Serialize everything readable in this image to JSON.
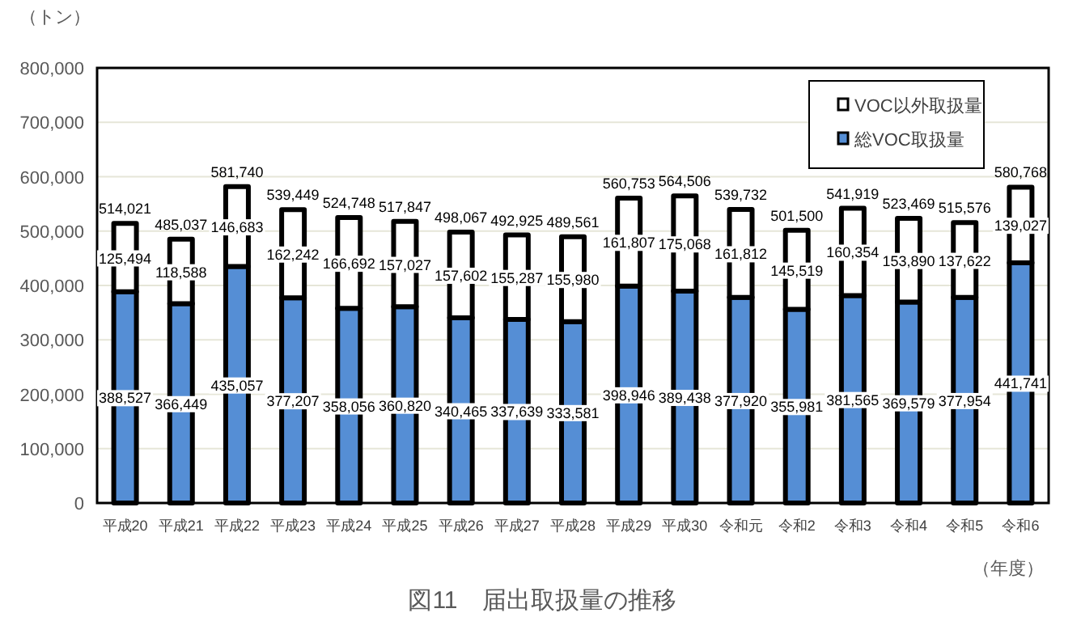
{
  "chart_data": {
    "type": "bar",
    "stacked": true,
    "title": "図11　届出取扱量の推移",
    "ylabel": "（トン）",
    "xlabel": "（年度）",
    "categories": [
      "平成20",
      "平成21",
      "平成22",
      "平成23",
      "平成24",
      "平成25",
      "平成26",
      "平成27",
      "平成28",
      "平成29",
      "平成30",
      "令和元",
      "令和2",
      "令和3",
      "令和4",
      "令和5",
      "令和6"
    ],
    "series": [
      {
        "name": "総VOC取扱量",
        "color": "#558ed5",
        "values": [
          388527,
          366449,
          435057,
          377207,
          358056,
          360820,
          340465,
          337639,
          333581,
          398946,
          389438,
          377920,
          355981,
          381565,
          369579,
          377954,
          441741
        ],
        "value_labels": [
          "388,527",
          "366,449",
          "435,057",
          "377,207",
          "358,056",
          "360,820",
          "340,465",
          "337,639",
          "333,581",
          "398,946",
          "389,438",
          "377,920",
          "355,981",
          "381,565",
          "369,579",
          "377,954",
          "441,741"
        ]
      },
      {
        "name": "VOC以外取扱量",
        "color": "#ffffff",
        "values": [
          125494,
          118588,
          146683,
          162242,
          166692,
          157027,
          157602,
          155287,
          155980,
          161807,
          175068,
          161812,
          145519,
          160354,
          153890,
          137622,
          139027
        ],
        "value_labels": [
          "125,494",
          "118,588",
          "146,683",
          "162,242",
          "166,692",
          "157,027",
          "157,602",
          "155,287",
          "155,980",
          "161,807",
          "175,068",
          "161,812",
          "145,519",
          "160,354",
          "153,890",
          "137,622",
          "139,027"
        ]
      }
    ],
    "totals": [
      "514,021",
      "485,037",
      "581,740",
      "539,449",
      "524,748",
      "517,847",
      "498,067",
      "492,925",
      "489,561",
      "560,753",
      "564,506",
      "539,732",
      "501,500",
      "541,919",
      "523,469",
      "515,576",
      "580,768"
    ],
    "ylim": [
      0,
      800000
    ],
    "yticks": [
      {
        "value": 0,
        "label": "0"
      },
      {
        "value": 100000,
        "label": "100,000"
      },
      {
        "value": 200000,
        "label": "200,000"
      },
      {
        "value": 300000,
        "label": "300,000"
      },
      {
        "value": 400000,
        "label": "400,000"
      },
      {
        "value": 500000,
        "label": "500,000"
      },
      {
        "value": 600000,
        "label": "600,000"
      },
      {
        "value": 700000,
        "label": "700,000"
      },
      {
        "value": 800000,
        "label": "800,000"
      }
    ],
    "grid": "y",
    "legend": "top right"
  }
}
